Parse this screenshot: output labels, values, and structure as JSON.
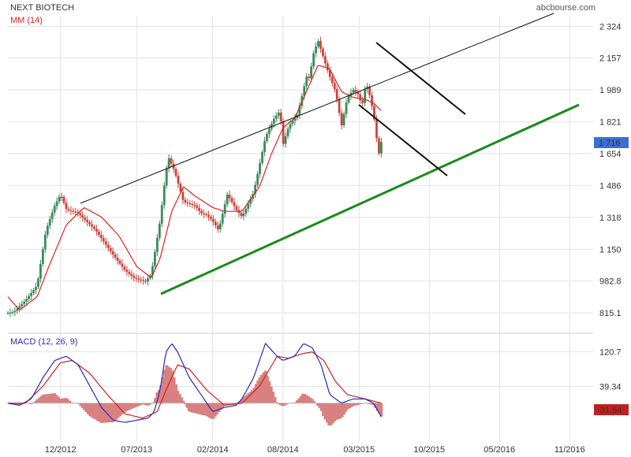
{
  "header": {
    "symbol": "NEXT BIOTECH",
    "source": "abcbourse.com"
  },
  "colors": {
    "bull": "#3a8a5a",
    "bear": "#c8453e",
    "ma": "#e02020",
    "macd": "#2a2ab8",
    "signal": "#d02020",
    "hist": "#d98080",
    "trend_support": "#1a8a1a",
    "trend_lines": "#111111",
    "grid": "#e2e2e2",
    "price_badge": "#3a6fd8",
    "macd_badge": "#c02020"
  },
  "chart_data": [
    {
      "type": "line",
      "title": "NEXT BIOTECH",
      "series_label": "MM (14)",
      "yticks": [
        "2 324",
        "2 157",
        "1 989",
        "1 821",
        "1 654",
        "1 486",
        "1 318",
        "1 150",
        "982.8",
        "815.1"
      ],
      "ytick_values": [
        2324,
        2157,
        1989,
        1821,
        1654,
        1486,
        1318,
        1150,
        982.8,
        815.1
      ],
      "ylim": [
        720,
        2380
      ],
      "xticks": [
        "12/2012",
        "07/2013",
        "02/2014",
        "08/2014",
        "03/2015",
        "10/2015",
        "05/2016",
        "11/2016"
      ],
      "xtick_pos": [
        0.09,
        0.22,
        0.35,
        0.47,
        0.6,
        0.72,
        0.84,
        0.96
      ],
      "last_value": "1 716",
      "price_keys": [
        [
          0.0,
          815
        ],
        [
          0.01,
          820
        ],
        [
          0.03,
          880
        ],
        [
          0.05,
          960
        ],
        [
          0.065,
          1250
        ],
        [
          0.08,
          1380
        ],
        [
          0.09,
          1440
        ],
        [
          0.1,
          1360
        ],
        [
          0.12,
          1340
        ],
        [
          0.15,
          1250
        ],
        [
          0.18,
          1120
        ],
        [
          0.2,
          1040
        ],
        [
          0.215,
          1000
        ],
        [
          0.235,
          980
        ],
        [
          0.245,
          1020
        ],
        [
          0.26,
          1300
        ],
        [
          0.27,
          1560
        ],
        [
          0.275,
          1630
        ],
        [
          0.285,
          1560
        ],
        [
          0.3,
          1400
        ],
        [
          0.32,
          1380
        ],
        [
          0.33,
          1340
        ],
        [
          0.34,
          1330
        ],
        [
          0.35,
          1300
        ],
        [
          0.36,
          1250
        ],
        [
          0.375,
          1440
        ],
        [
          0.39,
          1360
        ],
        [
          0.4,
          1320
        ],
        [
          0.42,
          1450
        ],
        [
          0.44,
          1740
        ],
        [
          0.455,
          1840
        ],
        [
          0.465,
          1880
        ],
        [
          0.47,
          1700
        ],
        [
          0.48,
          1800
        ],
        [
          0.495,
          1860
        ],
        [
          0.505,
          1990
        ],
        [
          0.51,
          2060
        ],
        [
          0.515,
          2050
        ],
        [
          0.522,
          2180
        ],
        [
          0.53,
          2250
        ],
        [
          0.54,
          2150
        ],
        [
          0.55,
          2060
        ],
        [
          0.56,
          1980
        ],
        [
          0.57,
          1800
        ],
        [
          0.58,
          1950
        ],
        [
          0.59,
          1990
        ],
        [
          0.6,
          1960
        ],
        [
          0.605,
          1900
        ],
        [
          0.612,
          2030
        ],
        [
          0.62,
          1940
        ],
        [
          0.628,
          1800
        ],
        [
          0.633,
          1640
        ],
        [
          0.638,
          1716
        ]
      ],
      "ma_keys": [
        [
          0.0,
          900
        ],
        [
          0.02,
          830
        ],
        [
          0.05,
          900
        ],
        [
          0.07,
          1060
        ],
        [
          0.1,
          1280
        ],
        [
          0.13,
          1370
        ],
        [
          0.16,
          1320
        ],
        [
          0.19,
          1220
        ],
        [
          0.22,
          1060
        ],
        [
          0.245,
          1000
        ],
        [
          0.26,
          1100
        ],
        [
          0.28,
          1350
        ],
        [
          0.3,
          1480
        ],
        [
          0.32,
          1430
        ],
        [
          0.35,
          1370
        ],
        [
          0.37,
          1350
        ],
        [
          0.4,
          1350
        ],
        [
          0.43,
          1480
        ],
        [
          0.45,
          1650
        ],
        [
          0.47,
          1790
        ],
        [
          0.49,
          1840
        ],
        [
          0.51,
          1980
        ],
        [
          0.53,
          2120
        ],
        [
          0.55,
          2100
        ],
        [
          0.57,
          1980
        ],
        [
          0.59,
          1950
        ],
        [
          0.61,
          1940
        ],
        [
          0.625,
          1920
        ],
        [
          0.638,
          1880
        ]
      ]
    },
    {
      "type": "line",
      "title": "MACD (12, 26, 9)",
      "yticks": [
        "120.7",
        "39.34"
      ],
      "ytick_values": [
        120.7,
        39.34
      ],
      "ylim": [
        -80,
        160
      ],
      "last_value": "-31.54",
      "macd_keys": [
        [
          0.0,
          0
        ],
        [
          0.02,
          -5
        ],
        [
          0.04,
          10
        ],
        [
          0.06,
          60
        ],
        [
          0.08,
          100
        ],
        [
          0.1,
          110
        ],
        [
          0.12,
          90
        ],
        [
          0.14,
          40
        ],
        [
          0.16,
          -10
        ],
        [
          0.18,
          -40
        ],
        [
          0.2,
          -45
        ],
        [
          0.22,
          -40
        ],
        [
          0.24,
          -35
        ],
        [
          0.25,
          -20
        ],
        [
          0.26,
          30
        ],
        [
          0.27,
          120
        ],
        [
          0.28,
          140
        ],
        [
          0.29,
          120
        ],
        [
          0.31,
          60
        ],
        [
          0.33,
          20
        ],
        [
          0.35,
          -20
        ],
        [
          0.37,
          -10
        ],
        [
          0.39,
          -5
        ],
        [
          0.4,
          10
        ],
        [
          0.42,
          60
        ],
        [
          0.44,
          140
        ],
        [
          0.46,
          110
        ],
        [
          0.47,
          100
        ],
        [
          0.49,
          110
        ],
        [
          0.505,
          140
        ],
        [
          0.52,
          130
        ],
        [
          0.535,
          90
        ],
        [
          0.55,
          20
        ],
        [
          0.57,
          0
        ],
        [
          0.59,
          10
        ],
        [
          0.61,
          10
        ],
        [
          0.625,
          0
        ],
        [
          0.638,
          -31.5
        ]
      ],
      "signal_keys": [
        [
          0.0,
          0
        ],
        [
          0.03,
          0
        ],
        [
          0.06,
          40
        ],
        [
          0.09,
          95
        ],
        [
          0.11,
          100
        ],
        [
          0.14,
          70
        ],
        [
          0.17,
          20
        ],
        [
          0.2,
          -25
        ],
        [
          0.23,
          -35
        ],
        [
          0.255,
          -20
        ],
        [
          0.27,
          30
        ],
        [
          0.29,
          90
        ],
        [
          0.31,
          80
        ],
        [
          0.34,
          30
        ],
        [
          0.37,
          -5
        ],
        [
          0.4,
          0
        ],
        [
          0.43,
          40
        ],
        [
          0.46,
          110
        ],
        [
          0.48,
          105
        ],
        [
          0.5,
          115
        ],
        [
          0.52,
          120
        ],
        [
          0.54,
          100
        ],
        [
          0.56,
          50
        ],
        [
          0.58,
          20
        ],
        [
          0.61,
          10
        ],
        [
          0.638,
          0
        ]
      ]
    }
  ]
}
